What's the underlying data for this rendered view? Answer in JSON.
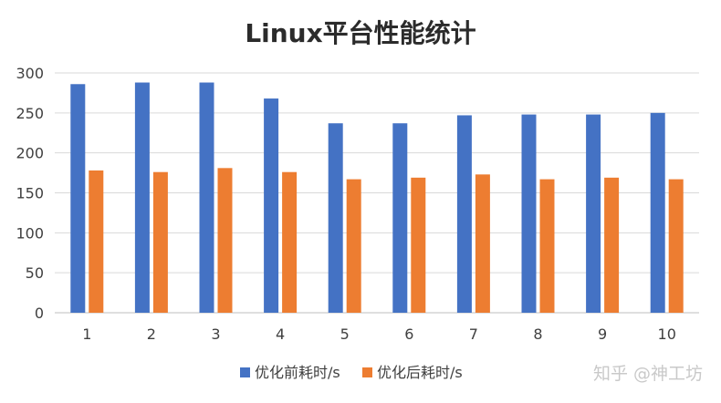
{
  "watermark": "知乎 @神工坊",
  "chart_data": {
    "type": "bar",
    "title": "Linux平台性能统计",
    "xlabel": "",
    "ylabel": "",
    "categories": [
      "1",
      "2",
      "3",
      "4",
      "5",
      "6",
      "7",
      "8",
      "9",
      "10"
    ],
    "ylim": [
      0,
      300
    ],
    "yticks": [
      "0",
      "50",
      "100",
      "150",
      "200",
      "250",
      "300"
    ],
    "grid": true,
    "legend_position": "bottom",
    "series": [
      {
        "name": "优化前耗时/s",
        "color": "#4472c4",
        "values": [
          286,
          288,
          288,
          268,
          237,
          237,
          247,
          248,
          248,
          250
        ]
      },
      {
        "name": "优化后耗时/s",
        "color": "#ed7d31",
        "values": [
          178,
          176,
          181,
          176,
          167,
          169,
          173,
          167,
          169,
          167
        ]
      }
    ]
  }
}
